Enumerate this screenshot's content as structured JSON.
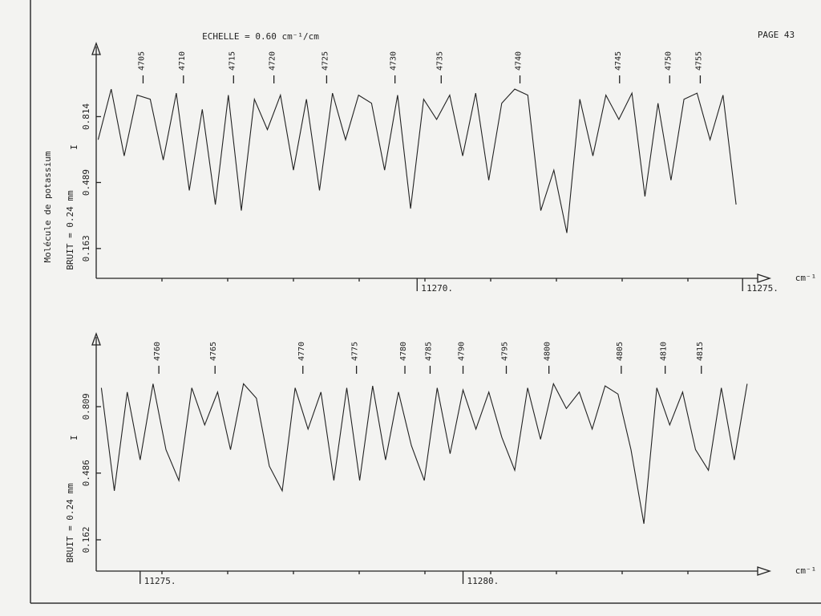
{
  "page_number": "PAGE 43",
  "chart_data": [
    {
      "type": "line",
      "title": "ECHELLE = 0.60 cm⁻¹/cm",
      "annotation": "Molécule de potassium",
      "ylabel": "BRUIT = 0.24 mm",
      "ylabel2": "I",
      "xlabel": "cm⁻¹",
      "color": "#222222",
      "xlim": [
        11265.07,
        11275.17
      ],
      "ylim": [
        0.016,
        1.16
      ],
      "xticks": [
        {
          "value": 11270,
          "label": "11270."
        },
        {
          "value": 11275,
          "label": "11275."
        }
      ],
      "yticks": [
        0.163,
        0.489,
        0.814
      ],
      "x": [
        11265.1,
        11265.3,
        11265.5,
        11265.7,
        11265.9,
        11266.1,
        11266.3,
        11266.5,
        11266.7,
        11266.9,
        11267.1,
        11267.3,
        11267.5,
        11267.7,
        11267.9,
        11268.1,
        11268.3,
        11268.5,
        11268.7,
        11268.9,
        11269.1,
        11269.3,
        11269.5,
        11269.7,
        11269.9,
        11270.1,
        11270.3,
        11270.5,
        11270.7,
        11270.9,
        11271.1,
        11271.3,
        11271.5,
        11271.7,
        11271.9,
        11272.1,
        11272.3,
        11272.5,
        11272.7,
        11272.9,
        11273.1,
        11273.3,
        11273.5,
        11273.7,
        11273.9,
        11274.1,
        11274.3,
        11274.5,
        11274.7,
        11274.9
      ],
      "values": [
        0.7,
        0.95,
        0.62,
        0.92,
        0.9,
        0.6,
        0.93,
        0.45,
        0.85,
        0.38,
        0.92,
        0.35,
        0.9,
        0.75,
        0.92,
        0.55,
        0.9,
        0.45,
        0.93,
        0.7,
        0.92,
        0.88,
        0.55,
        0.92,
        0.36,
        0.9,
        0.8,
        0.92,
        0.62,
        0.93,
        0.5,
        0.88,
        0.95,
        0.92,
        0.35,
        0.55,
        0.24,
        0.9,
        0.62,
        0.92,
        0.8,
        0.93,
        0.42,
        0.88,
        0.5,
        0.9,
        0.93,
        0.7,
        0.92,
        0.38
      ],
      "annotations": [
        {
          "label": "4705",
          "x": 11265.79
        },
        {
          "label": "4710",
          "x": 11266.41
        },
        {
          "label": "4715",
          "x": 11267.18
        },
        {
          "label": "4720",
          "x": 11267.8
        },
        {
          "label": "4725",
          "x": 11268.61
        },
        {
          "label": "4730",
          "x": 11269.66
        },
        {
          "label": "4735",
          "x": 11270.37
        },
        {
          "label": "4740",
          "x": 11271.58
        },
        {
          "label": "4745",
          "x": 11273.11
        },
        {
          "label": "4750",
          "x": 11273.88
        },
        {
          "label": "4755",
          "x": 11274.35
        }
      ]
    },
    {
      "type": "line",
      "ylabel": "BRUIT = 0.24 mm",
      "ylabel2": "I",
      "xlabel": "cm⁻¹",
      "color": "#222222",
      "xlim": [
        11274.32,
        11284.5
      ],
      "ylim": [
        0.01,
        1.148
      ],
      "xticks": [
        {
          "value": 11275,
          "label": "11275."
        },
        {
          "value": 11280,
          "label": "11280."
        }
      ],
      "yticks": [
        0.162,
        0.486,
        0.809
      ],
      "x": [
        11274.4,
        11274.6,
        11274.8,
        11275.0,
        11275.2,
        11275.4,
        11275.6,
        11275.8,
        11276.0,
        11276.2,
        11276.4,
        11276.6,
        11276.8,
        11277.0,
        11277.2,
        11277.4,
        11277.6,
        11277.8,
        11278.0,
        11278.2,
        11278.4,
        11278.6,
        11278.8,
        11279.0,
        11279.2,
        11279.4,
        11279.6,
        11279.8,
        11280.0,
        11280.2,
        11280.4,
        11280.6,
        11280.8,
        11281.0,
        11281.2,
        11281.4,
        11281.6,
        11281.8,
        11282.0,
        11282.2,
        11282.4,
        11282.6,
        11282.8,
        11283.0,
        11283.2,
        11283.4,
        11283.6,
        11283.8,
        11284.0,
        11284.2,
        11284.4
      ],
      "values": [
        0.9,
        0.4,
        0.88,
        0.55,
        0.92,
        0.6,
        0.45,
        0.9,
        0.72,
        0.88,
        0.6,
        0.92,
        0.85,
        0.52,
        0.4,
        0.9,
        0.7,
        0.88,
        0.45,
        0.9,
        0.45,
        0.91,
        0.55,
        0.88,
        0.62,
        0.45,
        0.9,
        0.58,
        0.89,
        0.7,
        0.88,
        0.66,
        0.5,
        0.9,
        0.65,
        0.92,
        0.8,
        0.88,
        0.7,
        0.91,
        0.87,
        0.6,
        0.24,
        0.9,
        0.72,
        0.88,
        0.6,
        0.5,
        0.9,
        0.55,
        0.92
      ],
      "annotations": [
        {
          "label": "4760",
          "x": 11275.29
        },
        {
          "label": "4765",
          "x": 11276.16
        },
        {
          "label": "4770",
          "x": 11277.52
        },
        {
          "label": "4775",
          "x": 11278.35
        },
        {
          "label": "4780",
          "x": 11279.1
        },
        {
          "label": "4785",
          "x": 11279.49
        },
        {
          "label": "4790",
          "x": 11280.0
        },
        {
          "label": "4795",
          "x": 11280.67
        },
        {
          "label": "4800",
          "x": 11281.33
        },
        {
          "label": "4805",
          "x": 11282.45
        },
        {
          "label": "4810",
          "x": 11283.13
        },
        {
          "label": "4815",
          "x": 11283.69
        }
      ]
    }
  ]
}
